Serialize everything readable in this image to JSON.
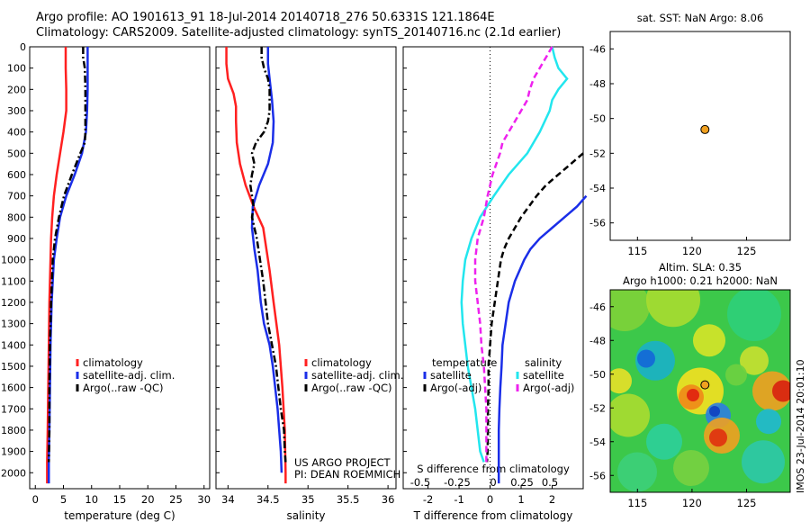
{
  "header": {
    "line1": "Argo profile: AO 1901613_91 18-Jul-2014 20140718_276 50.6331S 121.1864E",
    "line2": "Climatology: CARS2009. Satellite-adjusted climatology: synTS_20140716.nc (2.1d earlier)"
  },
  "colors": {
    "climatology": "#ff2020",
    "satellite": "#1a2ee8",
    "argo": "#000000",
    "satellite_sal": "#22e6ee",
    "argo_sal": "#ee22ee",
    "float_marker": "#f0a020"
  },
  "chart_data": [
    {
      "type": "line",
      "name": "temperature-panel",
      "xlabel": "temperature (deg C)",
      "xlim": [
        -1,
        31
      ],
      "xticks": [
        "0",
        "5",
        "10",
        "15",
        "20",
        "25",
        "30"
      ],
      "ylim": [
        2075,
        0
      ],
      "yticks": [
        "0",
        "100",
        "200",
        "300",
        "400",
        "500",
        "600",
        "700",
        "800",
        "900",
        "1000",
        "1100",
        "1200",
        "1300",
        "1400",
        "1500",
        "1600",
        "1700",
        "1800",
        "1900",
        "2000"
      ],
      "legend": [
        "climatology",
        "satellite-adj. clim.",
        "Argo(..raw -QC)"
      ],
      "series": [
        {
          "name": "climatology",
          "color": "#ff2020",
          "style": "solid",
          "depth": [
            0,
            100,
            200,
            300,
            400,
            500,
            600,
            700,
            800,
            900,
            1000,
            1200,
            1400,
            1600,
            1800,
            1950,
            2050
          ],
          "values": [
            5.4,
            5.4,
            5.5,
            5.5,
            5.0,
            4.4,
            3.8,
            3.3,
            3.0,
            2.8,
            2.7,
            2.5,
            2.4,
            2.3,
            2.2,
            2.1,
            2.1
          ]
        },
        {
          "name": "satellite-adj. clim.",
          "color": "#1a2ee8",
          "style": "solid",
          "depth": [
            0,
            100,
            200,
            300,
            400,
            500,
            600,
            700,
            800,
            900,
            1000,
            1200,
            1400,
            1600,
            1800,
            1950,
            2050
          ],
          "values": [
            9.3,
            9.3,
            9.3,
            9.2,
            9.0,
            8.3,
            7.0,
            5.5,
            4.4,
            3.8,
            3.3,
            2.9,
            2.7,
            2.6,
            2.5,
            2.4,
            2.4
          ]
        },
        {
          "name": "Argo(..raw -QC)",
          "color": "#000000",
          "style": "dashdot",
          "depth": [
            0,
            50,
            100,
            200,
            300,
            400,
            450,
            500,
            600,
            700,
            800,
            900,
            1000,
            1200,
            1400,
            1600,
            1800,
            1950
          ],
          "values": [
            8.5,
            8.5,
            8.8,
            8.9,
            8.9,
            8.9,
            8.8,
            8.0,
            6.5,
            5.1,
            4.2,
            3.5,
            3.1,
            2.8,
            2.6,
            2.5,
            2.5,
            2.4
          ]
        }
      ]
    },
    {
      "type": "line",
      "name": "salinity-panel",
      "xlabel": "salinity",
      "xlim": [
        33.85,
        36.1
      ],
      "xticks": [
        "34",
        "34.5",
        "35",
        "35.5",
        "36"
      ],
      "ylim": [
        2075,
        0
      ],
      "legend": [
        "climatology",
        "satellite-adj. clim.",
        "Argo(..raw -QC)"
      ],
      "annotation": [
        "US ARGO PROJECT",
        "PI: DEAN ROEMMICH"
      ],
      "series": [
        {
          "name": "climatology",
          "color": "#ff2020",
          "style": "solid",
          "depth": [
            0,
            80,
            150,
            220,
            280,
            350,
            450,
            550,
            650,
            750,
            850,
            950,
            1050,
            1200,
            1400,
            1600,
            1800,
            2000,
            2050
          ],
          "values": [
            33.98,
            33.98,
            34.0,
            34.07,
            34.1,
            34.1,
            34.11,
            34.15,
            34.22,
            34.32,
            34.44,
            34.48,
            34.52,
            34.57,
            34.64,
            34.68,
            34.71,
            34.72,
            34.72
          ]
        },
        {
          "name": "satellite-adj. clim.",
          "color": "#1a2ee8",
          "style": "solid",
          "depth": [
            0,
            80,
            150,
            250,
            350,
            450,
            550,
            650,
            750,
            850,
            950,
            1050,
            1200,
            1300,
            1400,
            1500,
            1600,
            1700,
            1800,
            1900,
            2000
          ],
          "values": [
            34.5,
            34.5,
            34.52,
            34.55,
            34.57,
            34.56,
            34.5,
            34.39,
            34.31,
            34.3,
            34.33,
            34.37,
            34.41,
            34.45,
            34.52,
            34.56,
            34.59,
            34.62,
            34.64,
            34.66,
            34.67
          ]
        },
        {
          "name": "Argo(..raw -QC)",
          "color": "#000000",
          "style": "dashdot",
          "depth": [
            0,
            50,
            100,
            150,
            200,
            250,
            300,
            350,
            400,
            450,
            500,
            550,
            600,
            650,
            700,
            750,
            800,
            900,
            1000,
            1100,
            1200,
            1300,
            1400,
            1500,
            1600,
            1700,
            1800,
            1900,
            1950
          ],
          "values": [
            34.42,
            34.42,
            34.45,
            34.5,
            34.52,
            34.52,
            34.52,
            34.5,
            34.45,
            34.35,
            34.3,
            34.33,
            34.3,
            34.28,
            34.3,
            34.32,
            34.3,
            34.36,
            34.4,
            34.44,
            34.47,
            34.5,
            34.55,
            34.6,
            34.63,
            34.66,
            34.7,
            34.71,
            34.72
          ]
        }
      ]
    },
    {
      "type": "line",
      "name": "difference-panel",
      "xlabel": "T difference from climatology",
      "xlabel_top": "S difference from climatology",
      "xlim": [
        -2.8,
        3.0
      ],
      "xticks_bottom": [
        "-2",
        "-1",
        "0",
        "1",
        "2"
      ],
      "xticks_top": [
        "-0.5",
        "-0.25",
        "0",
        "0.25",
        "0.5"
      ],
      "ylim": [
        2075,
        0
      ],
      "legend": [
        "temperature",
        "satellite",
        "Argo(-adj)",
        "salinity",
        "satellite",
        "Argo(-adj)"
      ],
      "series": [
        {
          "name": "satellite",
          "color": "#1a2ee8",
          "style": "solid",
          "depth": [
            700,
            750,
            800,
            850,
            900,
            950,
            1000,
            1100,
            1200,
            1300,
            1400,
            1500,
            1600,
            1700,
            1800,
            1900,
            2000,
            2050
          ],
          "values": [
            3.1,
            2.8,
            2.4,
            2.0,
            1.6,
            1.3,
            1.1,
            0.8,
            0.6,
            0.5,
            0.4,
            0.37,
            0.33,
            0.3,
            0.28,
            0.28,
            0.28,
            0.28
          ]
        },
        {
          "name": "Argo(-adj)",
          "color": "#000000",
          "style": "dashed",
          "depth": [
            500,
            550,
            600,
            650,
            700,
            750,
            800,
            850,
            900,
            950,
            1000,
            1100,
            1200,
            1300,
            1400,
            1500,
            1600,
            1700,
            1800,
            1900,
            1950
          ],
          "values": [
            3.0,
            2.6,
            2.2,
            1.8,
            1.5,
            1.25,
            1.0,
            0.8,
            0.6,
            0.45,
            0.35,
            0.25,
            0.15,
            0.05,
            0.0,
            -0.05,
            -0.05,
            -0.07,
            -0.07,
            -0.08,
            -0.1
          ]
        },
        {
          "name": "satellite",
          "color": "#22e6ee",
          "style": "solid",
          "depth": [
            0,
            50,
            100,
            150,
            200,
            250,
            300,
            400,
            500,
            600,
            700,
            800,
            900,
            1000,
            1100,
            1200,
            1300,
            1400,
            1500,
            1600,
            1700,
            1800,
            1900,
            1950
          ],
          "values": [
            0.5,
            0.52,
            0.55,
            0.62,
            0.55,
            0.5,
            0.48,
            0.4,
            0.3,
            0.15,
            0.03,
            -0.08,
            -0.15,
            -0.2,
            -0.22,
            -0.23,
            -0.22,
            -0.2,
            -0.18,
            -0.15,
            -0.12,
            -0.1,
            -0.08,
            -0.05
          ]
        },
        {
          "name": "Argo(-adj)",
          "color": "#ee22ee",
          "style": "dashed",
          "depth": [
            0,
            50,
            100,
            150,
            200,
            250,
            300,
            350,
            400,
            450,
            500,
            600,
            700,
            800,
            900,
            1000,
            1100,
            1200,
            1300,
            1400,
            1500,
            1600,
            1700,
            1800,
            1900,
            1950
          ],
          "values": [
            0.5,
            0.45,
            0.4,
            0.35,
            0.32,
            0.3,
            0.25,
            0.2,
            0.15,
            0.1,
            0.08,
            0.02,
            -0.02,
            -0.05,
            -0.1,
            -0.12,
            -0.12,
            -0.1,
            -0.08,
            -0.07,
            -0.05,
            -0.04,
            -0.03,
            -0.03,
            -0.03,
            -0.03
          ]
        }
      ]
    },
    {
      "type": "scatter",
      "name": "position-map",
      "title": "sat. SST: NaN Argo: 8.06",
      "xlim": [
        112.5,
        129
      ],
      "ylim": [
        -57,
        -45
      ],
      "xticks": [
        "115",
        "120",
        "125"
      ],
      "yticks": [
        "-46",
        "-48",
        "-50",
        "-52",
        "-54",
        "-56"
      ],
      "points": [
        {
          "x": 121.1864,
          "y": -50.6331
        }
      ]
    },
    {
      "type": "heatmap",
      "name": "altimetry-map",
      "title_lines": [
        "Altim. SLA: 0.35",
        "Argo h1000: 0.21 h2000: NaN"
      ],
      "side_label": "IMOS 23-Jul-2014 20:01:10",
      "xlim": [
        112.5,
        129
      ],
      "ylim": [
        -57,
        -45
      ],
      "xticks": [
        "115",
        "120",
        "125"
      ],
      "yticks": [
        "-46",
        "-48",
        "-50",
        "-52",
        "-54",
        "-56"
      ],
      "points": [
        {
          "x": 121.1864,
          "y": -50.6331
        }
      ]
    }
  ]
}
